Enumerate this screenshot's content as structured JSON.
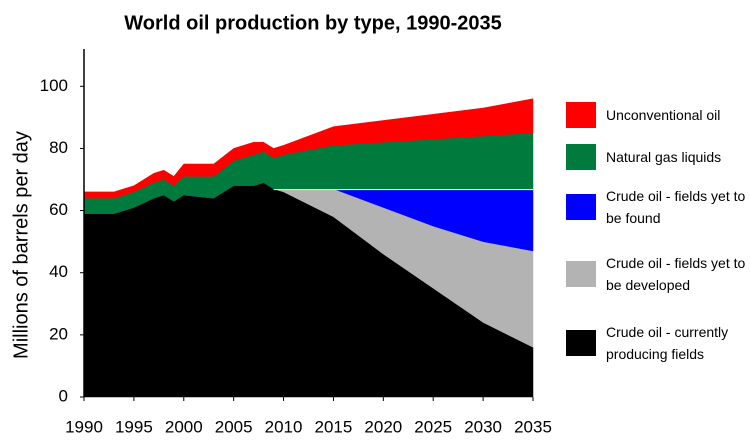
{
  "chart_data": {
    "type": "stacked-area",
    "title": "World oil production by type, 1990-2035",
    "ylabel": "Millions of barrels per day",
    "x": [
      1990,
      1993,
      1995,
      1997,
      1998,
      1999,
      2000,
      2003,
      2005,
      2007,
      2008,
      2009,
      2010,
      2015,
      2020,
      2025,
      2030,
      2035
    ],
    "series": [
      {
        "name": "Crude oil - currently producing fields",
        "color": "#000000",
        "values": [
          59,
          59,
          61,
          64,
          65,
          63,
          65,
          64,
          68,
          68,
          69,
          67,
          66,
          58,
          46,
          35,
          24,
          16
        ]
      },
      {
        "name": "Crude oil - fields yet to be developed",
        "color": "#b3b3b3",
        "values": [
          0,
          0,
          0,
          0,
          0,
          0,
          0,
          0,
          0,
          0,
          0,
          0,
          1,
          9,
          15,
          20,
          26,
          31
        ]
      },
      {
        "name": "Crude oil - fields yet to be found",
        "color": "#0000ff",
        "values": [
          0,
          0,
          0,
          0,
          0,
          0,
          0,
          0,
          0,
          0,
          0,
          0,
          0,
          0,
          6,
          12,
          17,
          20
        ]
      },
      {
        "name": "Natural gas liquids",
        "color": "#007a3d",
        "values": [
          5,
          5,
          5,
          5,
          5,
          5,
          6,
          7,
          8,
          10,
          10,
          10,
          11,
          14,
          15,
          16,
          17,
          18
        ]
      },
      {
        "name": "Unconventional oil",
        "color": "#ff0000",
        "values": [
          2,
          2,
          2,
          3,
          3,
          3,
          4,
          4,
          4,
          4,
          3,
          3,
          3,
          6,
          7,
          8,
          9,
          11
        ]
      }
    ],
    "xlim": [
      1990,
      2035
    ],
    "xticks": [
      1990,
      1995,
      2000,
      2005,
      2010,
      2015,
      2020,
      2025,
      2030,
      2035
    ],
    "ylim": [
      0,
      112
    ],
    "yticks": [
      0,
      20,
      40,
      60,
      80,
      100
    ]
  }
}
